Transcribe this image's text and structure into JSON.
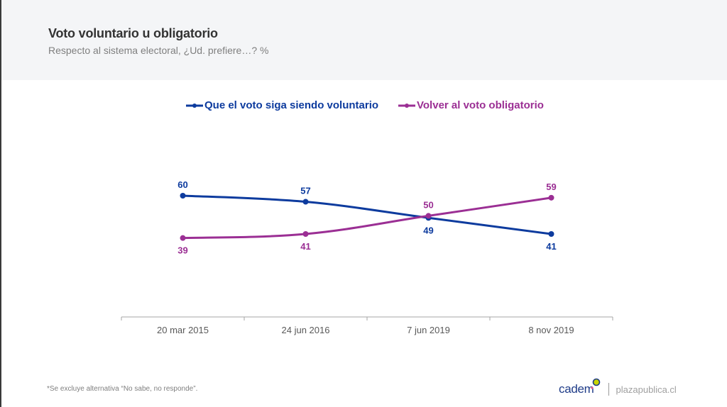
{
  "header": {
    "title": "Voto voluntario u obligatorio",
    "subtitle": "Respecto al sistema electoral, ¿Ud. prefiere…? %"
  },
  "footer": {
    "footnote": "*Se excluye alternativa “No sabe, no responde”.",
    "brand": "cadem",
    "site": "plazapublica.cl"
  },
  "colors": {
    "series0": "#0d3b9e",
    "series1": "#9b2f94",
    "axis": "#a6a6a6"
  },
  "chart_data": {
    "type": "line",
    "title": "Voto voluntario u obligatorio",
    "subtitle": "Respecto al sistema electoral, ¿Ud. prefiere…? %",
    "xlabel": "",
    "ylabel": "",
    "categories": [
      "20 mar 2015",
      "24 jun 2016",
      "7 jun 2019",
      "8 nov 2019"
    ],
    "series": [
      {
        "name": "Que el voto siga siendo voluntario",
        "values": [
          60,
          57,
          49,
          41
        ],
        "color": "#0d3b9e",
        "label_position": [
          "above",
          "above",
          "below",
          "below"
        ]
      },
      {
        "name": "Volver al voto obligatorio",
        "values": [
          39,
          41,
          50,
          59
        ],
        "color": "#9b2f94",
        "label_position": [
          "below",
          "below",
          "above",
          "above"
        ]
      }
    ],
    "ylim": [
      41,
      60
    ],
    "grid": false,
    "legend": "top-center",
    "smooth": true
  }
}
